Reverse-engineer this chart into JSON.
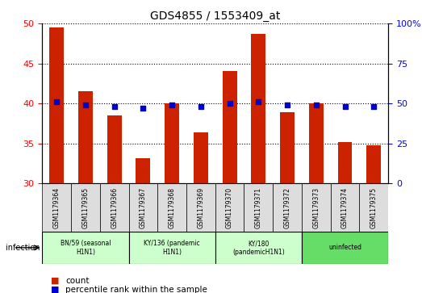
{
  "title": "GDS4855 / 1553409_at",
  "samples": [
    "GSM1179364",
    "GSM1179365",
    "GSM1179366",
    "GSM1179367",
    "GSM1179368",
    "GSM1179369",
    "GSM1179370",
    "GSM1179371",
    "GSM1179372",
    "GSM1179373",
    "GSM1179374",
    "GSM1179375"
  ],
  "counts": [
    49.5,
    41.5,
    38.5,
    33.2,
    40.0,
    36.4,
    44.1,
    48.7,
    38.9,
    40.0,
    35.2,
    34.8
  ],
  "percentiles": [
    51,
    49,
    48,
    47,
    49,
    48,
    50,
    51,
    49,
    49,
    48,
    48
  ],
  "bar_color": "#cc2200",
  "dot_color": "#0000cc",
  "ylim_left": [
    30,
    50
  ],
  "ylim_right": [
    0,
    100
  ],
  "yticks_left": [
    30,
    35,
    40,
    45,
    50
  ],
  "yticks_right": [
    0,
    25,
    50,
    75,
    100
  ],
  "groups": [
    {
      "label": "BN/59 (seasonal\nH1N1)",
      "start": 0,
      "end": 3,
      "color": "#ccffcc"
    },
    {
      "label": "KY/136 (pandemic\nH1N1)",
      "start": 3,
      "end": 6,
      "color": "#ccffcc"
    },
    {
      "label": "KY/180\n(pandemicH1N1)",
      "start": 6,
      "end": 9,
      "color": "#ccffcc"
    },
    {
      "label": "uninfected",
      "start": 9,
      "end": 12,
      "color": "#66ee66"
    }
  ],
  "group_bg_colors": [
    "#dddddd",
    "#dddddd",
    "#dddddd",
    "#dddddd"
  ],
  "legend_count_label": "count",
  "legend_percentile_label": "percentile rank within the sample",
  "infection_label": "infection"
}
